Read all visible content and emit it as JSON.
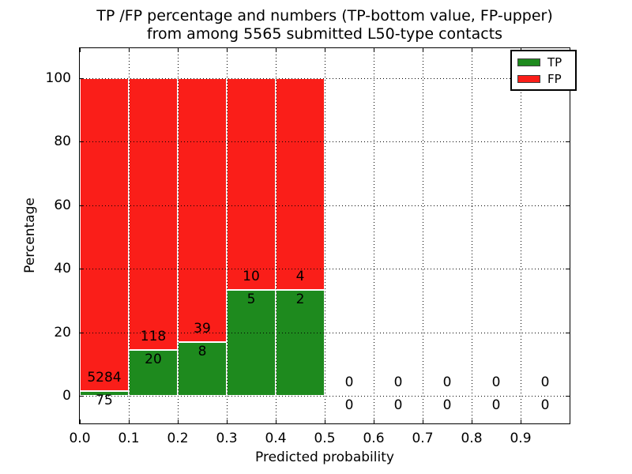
{
  "figure": {
    "title_line1": "TP /FP percentage and numbers (TP-bottom value, FP-upper)",
    "title_line2": "from among 5565 submitted L50-type contacts"
  },
  "chart_data": {
    "type": "bar",
    "subtype": "stacked-percentage-histogram",
    "title": "TP /FP percentage and numbers (TP-bottom value, FP-upper)\nfrom among 5565 submitted L50-type contacts",
    "xlabel": "Predicted probability",
    "ylabel": "Percentage",
    "total_submitted": 5565,
    "bins": {
      "start": 0.0,
      "bin_width": 0.1,
      "count": 10
    },
    "xlim": [
      0.0,
      1.0
    ],
    "ylim": [
      -9,
      109
    ],
    "xticklabels": [
      "0.0",
      "0.1",
      "0.2",
      "0.3",
      "0.4",
      "0.5",
      "0.6",
      "0.7",
      "0.8",
      "0.9"
    ],
    "yticks": [
      0,
      20,
      40,
      60,
      80,
      100
    ],
    "yticklabels": [
      "0",
      "20",
      "40",
      "60",
      "80",
      "100"
    ],
    "grid": "dotted-both-axes",
    "bar_edge_color": "#ffffff",
    "series": [
      {
        "name": "TP",
        "color": "#1e8a1e",
        "counts": [
          75,
          20,
          8,
          5,
          2,
          0,
          0,
          0,
          0,
          0
        ]
      },
      {
        "name": "FP",
        "color": "#fa1e19",
        "counts": [
          5284,
          118,
          39,
          10,
          4,
          0,
          0,
          0,
          0,
          0
        ]
      }
    ],
    "tp_percent_of_bin": [
      1.4,
      14.49,
      17.02,
      33.33,
      33.33,
      0,
      0,
      0,
      0,
      0
    ],
    "stacked_bin_total_percent": [
      100,
      100,
      100,
      100,
      100,
      0,
      0,
      0,
      0,
      0
    ],
    "legend": {
      "position": "upper-right",
      "entries": [
        {
          "label": "TP",
          "color": "#1e8a1e"
        },
        {
          "label": "FP",
          "color": "#fa1e19"
        }
      ]
    }
  }
}
